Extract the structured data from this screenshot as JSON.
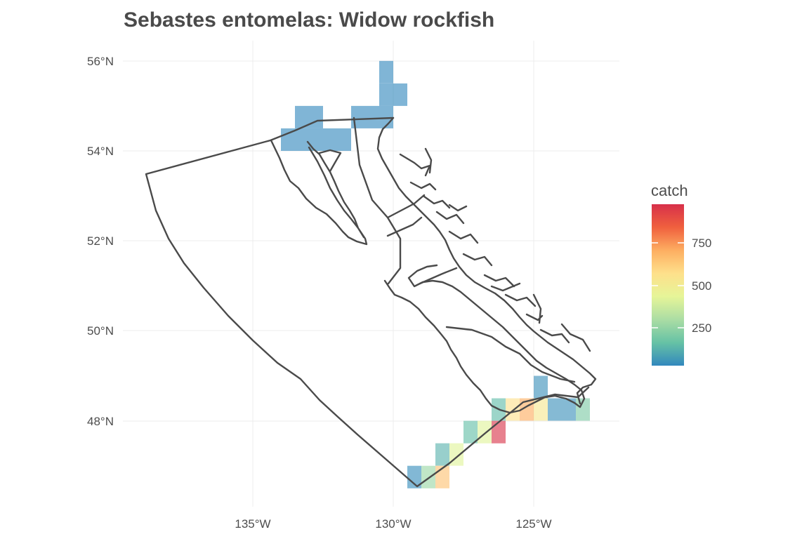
{
  "title": "Sebastes entomelas: Widow rockfish",
  "axes": {
    "lat_ticks": [
      "56°N",
      "54°N",
      "52°N",
      "50°N",
      "48°N"
    ],
    "lon_ticks": [
      "135°W",
      "130°W",
      "125°W"
    ]
  },
  "legend": {
    "title": "catch",
    "labels": [
      "750",
      "500",
      "250"
    ],
    "placement": "right",
    "colors": [
      "#d7304a",
      "#f0603e",
      "#fdae61",
      "#fee08b",
      "#e6f598",
      "#abdda4",
      "#66c2a5",
      "#3288bd"
    ]
  },
  "chart_data": {
    "type": "heatmap",
    "title": "Sebastes entomelas: Widow rockfish",
    "legend_title": "catch",
    "grid": true,
    "scale": {
      "min": 20,
      "max": 980,
      "ticks": [
        250,
        500,
        750
      ]
    },
    "cells": [
      {
        "lon": -130.25,
        "lat": 55.75,
        "catch": 20
      },
      {
        "lon": -130.25,
        "lat": 55.25,
        "catch": 20
      },
      {
        "lon": -129.75,
        "lat": 55.25,
        "catch": 20
      },
      {
        "lon": -133.0,
        "lat": 54.75,
        "w": 1.0,
        "catch": 20
      },
      {
        "lon": -131.0,
        "lat": 54.75,
        "w": 1.0,
        "catch": 20
      },
      {
        "lon": -130.25,
        "lat": 54.75,
        "catch": 20
      },
      {
        "lon": -133.75,
        "lat": 54.25,
        "catch": 20
      },
      {
        "lon": -133.0,
        "lat": 54.25,
        "w": 1.0,
        "catch": 20
      },
      {
        "lon": -132.0,
        "lat": 54.25,
        "w": 1.0,
        "catch": 20
      },
      {
        "lon": -124.75,
        "lat": 48.75,
        "catch": 40
      },
      {
        "lon": -126.25,
        "lat": 48.25,
        "catch": 140
      },
      {
        "lon": -125.75,
        "lat": 48.25,
        "catch": 560
      },
      {
        "lon": -125.25,
        "lat": 48.25,
        "catch": 710
      },
      {
        "lon": -124.75,
        "lat": 48.25,
        "catch": 520
      },
      {
        "lon": -124.0,
        "lat": 48.25,
        "w": 1.0,
        "catch": 40
      },
      {
        "lon": -123.25,
        "lat": 48.25,
        "catch": 200
      },
      {
        "lon": -127.25,
        "lat": 47.75,
        "catch": 150
      },
      {
        "lon": -126.75,
        "lat": 47.75,
        "catch": 420
      },
      {
        "lon": -126.25,
        "lat": 47.75,
        "catch": 970
      },
      {
        "lon": -128.25,
        "lat": 47.25,
        "catch": 120
      },
      {
        "lon": -127.75,
        "lat": 47.25,
        "catch": 420
      },
      {
        "lon": -129.25,
        "lat": 46.75,
        "catch": 30
      },
      {
        "lon": -128.75,
        "lat": 46.75,
        "catch": 260
      },
      {
        "lon": -128.25,
        "lat": 46.75,
        "catch": 650
      }
    ]
  }
}
